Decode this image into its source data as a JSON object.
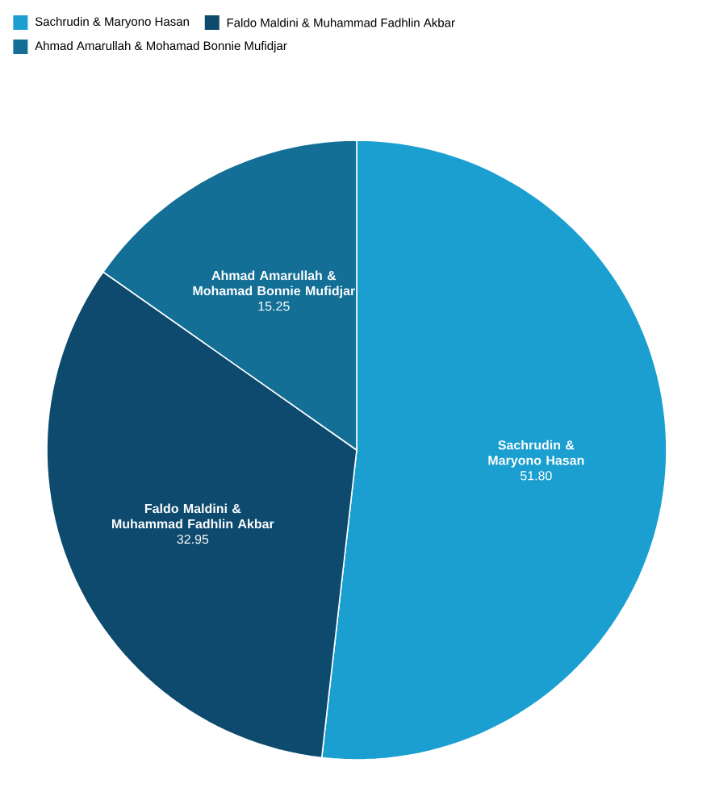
{
  "chart_data": {
    "type": "pie",
    "categories": [
      "Sachrudin & Maryono Hasan",
      "Faldo Maldini & Muhammad Fadhlin Akbar",
      "Ahmad Amarullah & Mohamad Bonnie Mufidjar"
    ],
    "values": [
      51.8,
      32.95,
      15.25
    ],
    "value_labels": [
      "51.80",
      "32.95",
      "15.25"
    ],
    "colors": [
      "#1a9fd0",
      "#0d4a6e",
      "#136f96"
    ],
    "legend": "top"
  }
}
